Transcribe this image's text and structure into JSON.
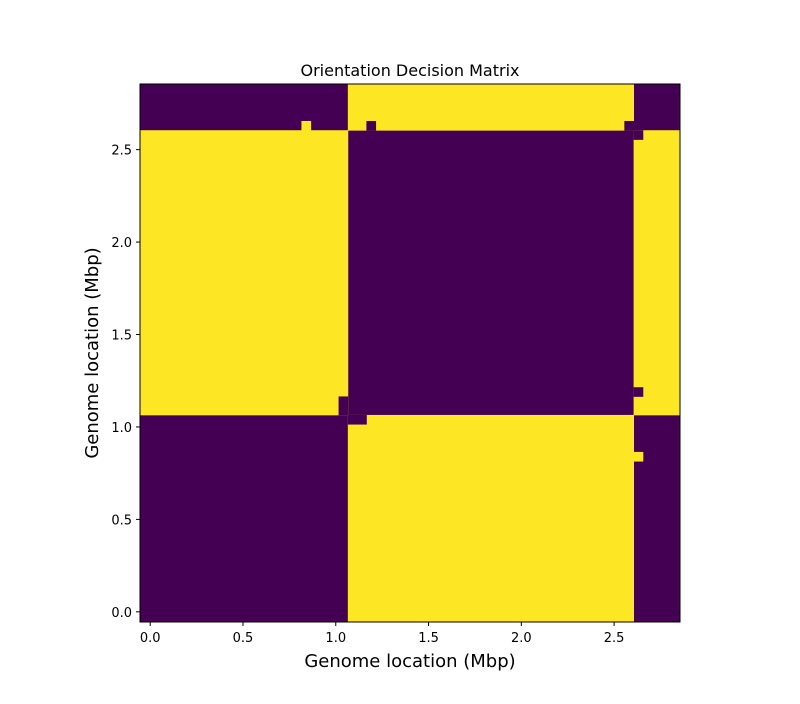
{
  "chart_data": {
    "type": "heatmap",
    "title": "Orientation Decision Matrix",
    "xlabel": "Genome location (Mbp)",
    "ylabel": "Genome location (Mbp)",
    "xlim": [
      -0.055,
      2.855
    ],
    "ylim": [
      -0.055,
      2.855
    ],
    "x_ticks": [
      {
        "value": 0.0,
        "label": "0.0"
      },
      {
        "value": 0.5,
        "label": "0.5"
      },
      {
        "value": 1.0,
        "label": "1.0"
      },
      {
        "value": 1.5,
        "label": "1.5"
      },
      {
        "value": 2.0,
        "label": "2.0"
      },
      {
        "value": 2.5,
        "label": "2.5"
      }
    ],
    "y_ticks": [
      {
        "value": 0.0,
        "label": "0.0"
      },
      {
        "value": 0.5,
        "label": "0.5"
      },
      {
        "value": 1.0,
        "label": "1.0"
      },
      {
        "value": 1.5,
        "label": "1.5"
      },
      {
        "value": 2.0,
        "label": "2.0"
      },
      {
        "value": 2.5,
        "label": "2.5"
      }
    ],
    "colormap": {
      "0": "#440154",
      "1": "#fde725"
    },
    "background_value": 0,
    "regions": [
      {
        "name": "region-left-middle",
        "x": [
          -0.055,
          1.065
        ],
        "y": [
          1.065,
          2.605
        ],
        "value": 1
      },
      {
        "name": "region-middle-top",
        "x": [
          1.065,
          2.605
        ],
        "y": [
          2.605,
          2.855
        ],
        "value": 1
      },
      {
        "name": "region-middle-bottom",
        "x": [
          1.065,
          2.605
        ],
        "y": [
          -0.055,
          1.065
        ],
        "value": 1
      },
      {
        "name": "region-right-middle",
        "x": [
          2.605,
          2.855
        ],
        "y": [
          1.065,
          2.605
        ],
        "value": 1
      },
      {
        "name": "patch-a",
        "x": [
          0.815,
          0.865
        ],
        "y": [
          2.605,
          2.655
        ],
        "value": 1
      },
      {
        "name": "patch-b",
        "x": [
          1.015,
          1.065
        ],
        "y": [
          1.065,
          1.165
        ],
        "value": 0
      },
      {
        "name": "patch-c",
        "x": [
          1.065,
          1.165
        ],
        "y": [
          1.015,
          1.065
        ],
        "value": 0
      },
      {
        "name": "patch-d",
        "x": [
          1.165,
          1.215
        ],
        "y": [
          2.605,
          2.655
        ],
        "value": 0
      },
      {
        "name": "patch-e",
        "x": [
          2.555,
          2.605
        ],
        "y": [
          2.605,
          2.655
        ],
        "value": 0
      },
      {
        "name": "patch-f",
        "x": [
          2.605,
          2.655
        ],
        "y": [
          2.555,
          2.605
        ],
        "value": 0
      },
      {
        "name": "patch-g",
        "x": [
          2.605,
          2.655
        ],
        "y": [
          1.165,
          1.215
        ],
        "value": 0
      },
      {
        "name": "patch-h",
        "x": [
          2.605,
          2.655
        ],
        "y": [
          0.815,
          0.865
        ],
        "value": 1
      }
    ]
  }
}
